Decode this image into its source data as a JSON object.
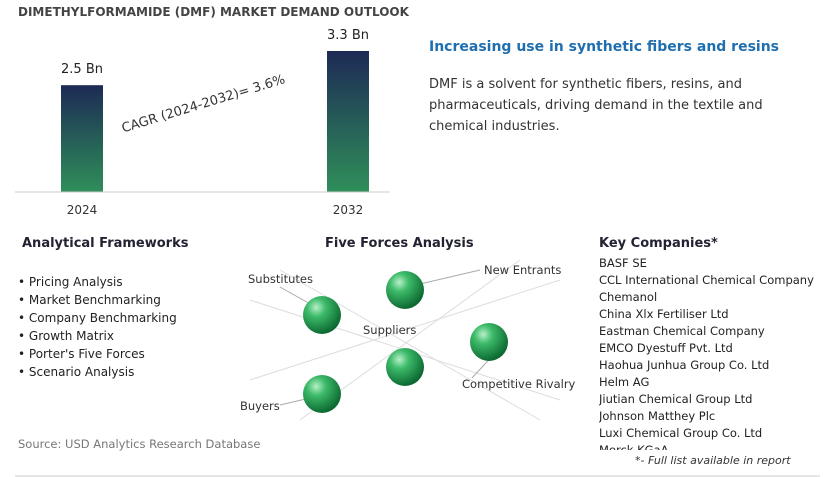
{
  "chart_data": {
    "type": "bar",
    "title": "DIMETHYLFORMAMIDE (DMF) MARKET DEMAND OUTLOOK",
    "categories": [
      "2024",
      "2032"
    ],
    "values": [
      2.5,
      3.3
    ],
    "value_labels": [
      "2.5 Bn",
      "3.3 Bn"
    ],
    "annotation": "CAGR (2024-2032)=   3.6%"
  },
  "highlight": {
    "heading": "Increasing use in synthetic fibers and resins",
    "text": "DMF is a solvent for synthetic fibers, resins, and pharmaceuticals, driving demand in the textile and chemical industries."
  },
  "frameworks": {
    "title": "Analytical Frameworks",
    "items": [
      "Pricing Analysis",
      "Market Benchmarking",
      "Company Benchmarking",
      "Growth Matrix",
      "Porter's Five Forces",
      "Scenario Analysis"
    ]
  },
  "five_forces": {
    "title": "Five Forces Analysis",
    "labels": [
      "Substitutes",
      "New Entrants",
      "Suppliers",
      "Competitive Rivalry",
      "Buyers"
    ]
  },
  "key_companies": {
    "title": "Key Companies*",
    "items": [
      "BASF SE",
      "CCL International Chemical Company",
      "Chemanol",
      "China Xlx Fertiliser Ltd",
      "Eastman Chemical Company",
      "EMCO Dyestuff Pvt. Ltd",
      "Haohua Junhua Group Co. Ltd",
      "Helm AG",
      "Jiutian Chemical Group Ltd",
      "Johnson Matthey Plc",
      "Luxi Chemical Group Co. Ltd",
      "Merck KGaA"
    ],
    "note": "*- Full list available in report"
  },
  "source": "Source: USD Analytics Research Database"
}
